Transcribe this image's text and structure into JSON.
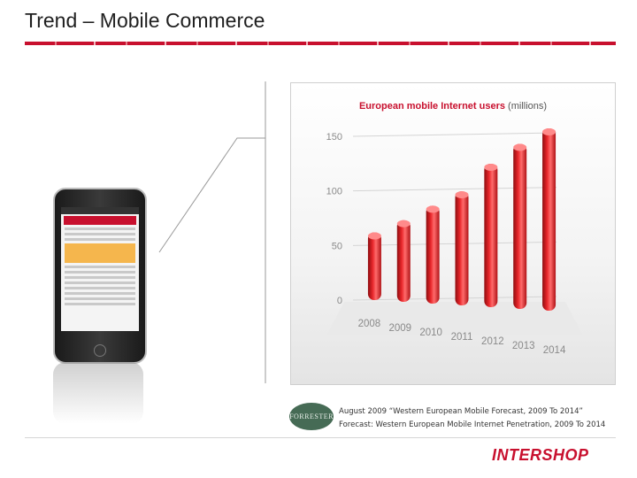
{
  "slide": {
    "title": "Trend – Mobile Commerce"
  },
  "chart_data": {
    "type": "bar",
    "title": "European mobile Internet users",
    "unit_label": "(millions)",
    "categories": [
      "2008",
      "2009",
      "2010",
      "2011",
      "2012",
      "2013",
      "2014"
    ],
    "values": [
      62,
      72,
      84,
      96,
      120,
      137,
      150
    ],
    "yticks": [
      "0",
      "50",
      "100",
      "150"
    ],
    "ylim": [
      0,
      150
    ],
    "grid": true,
    "bar_color": "#d7191c"
  },
  "source": {
    "logo_text": "FORRESTER",
    "line1": "August 2009 “Western European Mobile Forecast, 2009 To 2014”",
    "line2": "Forecast: Western European Mobile Internet Penetration, 2009 To 2014"
  },
  "brand": {
    "logo_text": "INTERSHOP"
  }
}
